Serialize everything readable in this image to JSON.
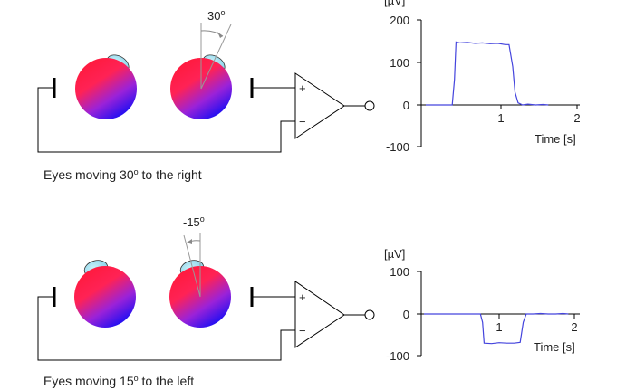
{
  "panels": [
    {
      "caption_text": "Eyes moving 30",
      "caption_deg": "o",
      "caption_tail": " to the right",
      "angle_value": "30",
      "angle_deg": "o",
      "angle_direction": "right",
      "amp_plus": "+",
      "amp_minus": "−",
      "chart": {
        "ylabel": "[µV]",
        "xlabel": "Time [s]",
        "yticks": [
          "200",
          "100",
          "0",
          "-100"
        ],
        "xticks": [
          "1",
          "2"
        ]
      }
    },
    {
      "caption_text": "Eyes moving 15",
      "caption_deg": "o",
      "caption_tail": " to the left",
      "angle_value": "-15",
      "angle_deg": "o",
      "angle_direction": "left",
      "amp_plus": "+",
      "amp_minus": "−",
      "chart": {
        "ylabel": "[µV]",
        "xlabel": "Time [s]",
        "yticks": [
          "100",
          "0",
          "-100"
        ],
        "xticks": [
          "1",
          "2"
        ]
      }
    }
  ],
  "chart_data": [
    {
      "type": "line",
      "xlabel": "Time [s]",
      "ylabel": "[µV]",
      "xlim": [
        0,
        2
      ],
      "ylim": [
        -100,
        200
      ],
      "series": [
        {
          "color": "#4444dd",
          "x": [
            0.0,
            0.35,
            0.38,
            0.4,
            0.45,
            0.55,
            0.65,
            0.75,
            0.85,
            0.95,
            1.05,
            1.1,
            1.15,
            1.18,
            1.22,
            1.28,
            1.35,
            1.45,
            1.55,
            1.62
          ],
          "y": [
            0,
            0,
            60,
            148,
            146,
            147,
            145,
            146,
            144,
            145,
            142,
            142,
            90,
            30,
            5,
            0,
            2,
            0,
            1,
            0
          ]
        }
      ]
    },
    {
      "type": "line",
      "xlabel": "Time [s]",
      "ylabel": "[µV]",
      "xlim": [
        0,
        2
      ],
      "ylim": [
        -100,
        100
      ],
      "series": [
        {
          "color": "#4444dd",
          "x": [
            0.0,
            0.5,
            0.75,
            0.78,
            0.8,
            0.9,
            1.0,
            1.1,
            1.2,
            1.28,
            1.32,
            1.36,
            1.45,
            1.55,
            1.65,
            1.75,
            1.85,
            1.92
          ],
          "y": [
            0,
            0,
            0,
            -20,
            -70,
            -71,
            -69,
            -70,
            -70,
            -68,
            -20,
            0,
            0,
            1,
            0,
            0,
            1,
            0
          ]
        }
      ]
    }
  ]
}
